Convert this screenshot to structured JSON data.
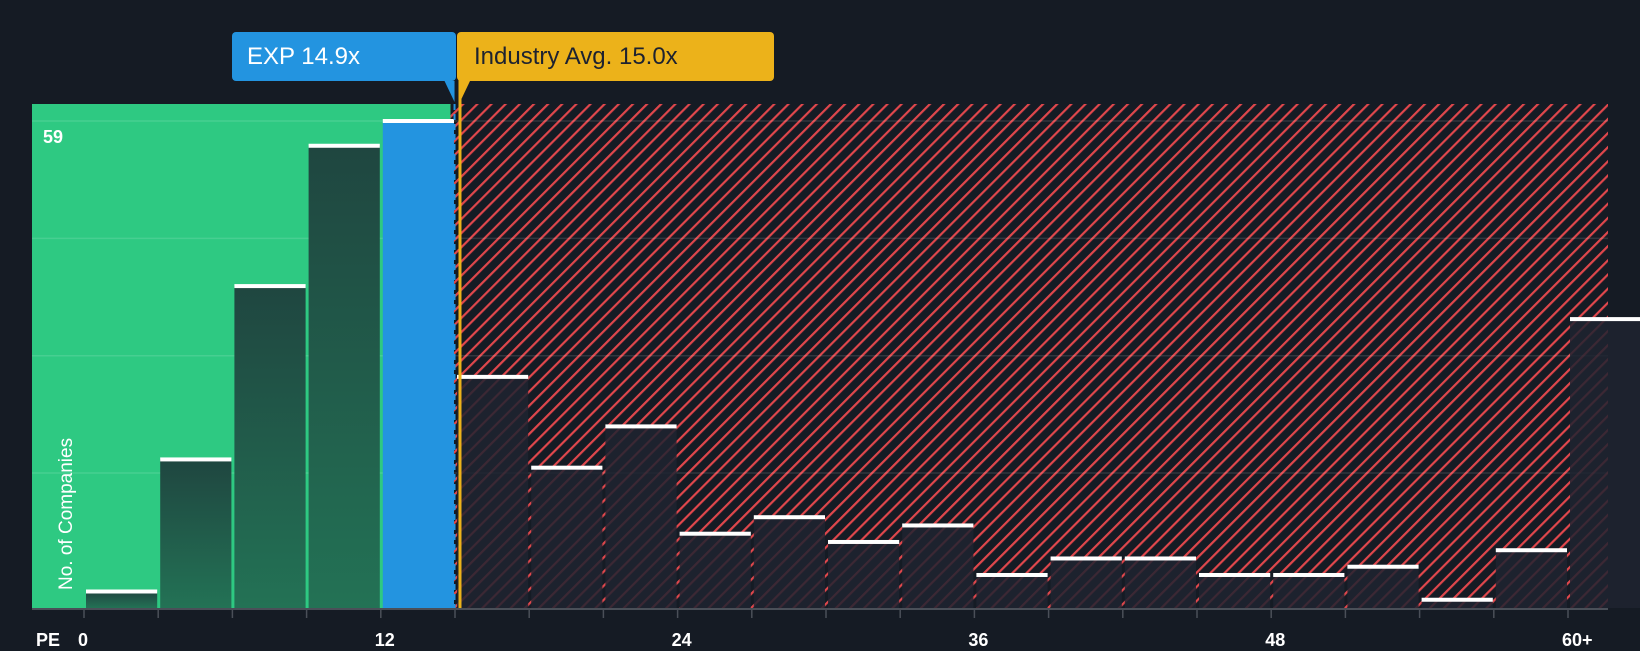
{
  "callouts": {
    "company": {
      "label": "EXP 14.9x",
      "color": "#2394e0"
    },
    "industry": {
      "label": "Industry Avg. 15.0x",
      "color": "#ecb21a"
    }
  },
  "axis": {
    "y_label": "No. of Companies",
    "y_max_label": "59",
    "x_prefix": "PE",
    "x_ticks": [
      "0",
      "12",
      "24",
      "36",
      "48",
      "60+"
    ]
  },
  "colors": {
    "background": "#151b24",
    "undervalued_zone": "#2ec982",
    "overvalued_hatch": "#e0474c",
    "company_bar": "#2394e0",
    "bar_fill": "#1e4a40",
    "bar_top": "#ffffff"
  },
  "chart_data": {
    "type": "bar",
    "title": "",
    "xlabel": "PE",
    "ylabel": "No. of Companies",
    "ylim": [
      0,
      59
    ],
    "grid": true,
    "categories": [
      "0-3",
      "3-6",
      "6-9",
      "9-12",
      "12-15",
      "15-18",
      "18-21",
      "21-24",
      "24-27",
      "27-30",
      "30-33",
      "33-36",
      "36-39",
      "39-42",
      "42-45",
      "45-48",
      "48-51",
      "51-54",
      "54-57",
      "57-60",
      "60+"
    ],
    "values": [
      2,
      18,
      39,
      56,
      59,
      28,
      17,
      22,
      9,
      11,
      8,
      10,
      4,
      6,
      6,
      4,
      4,
      5,
      1,
      7,
      35
    ],
    "highlight_index": 4,
    "company_pe": 14.9,
    "industry_avg_pe": 15.0,
    "x_tick_labels": [
      "0",
      "12",
      "24",
      "36",
      "48",
      "60+"
    ],
    "annotations": [
      "EXP 14.9x",
      "Industry Avg. 15.0x"
    ]
  }
}
